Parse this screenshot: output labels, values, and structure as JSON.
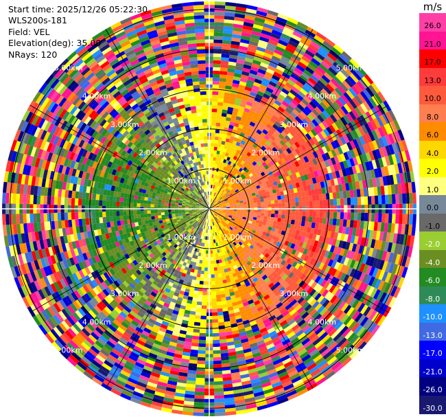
{
  "header": {
    "start_time": "Start time: 2025/12/26 05:22:30",
    "instrument": "WLS200s-181",
    "field": "Field: VEL",
    "elevation": "Elevation(deg): 35.00",
    "nrays": "NRays: 120"
  },
  "colorbar": {
    "unit": "m/s",
    "levels": [
      {
        "label": "26.0",
        "color": "#ff3fa6"
      },
      {
        "label": "21.0",
        "color": "#ff1493"
      },
      {
        "label": "17.0",
        "color": "#ff0000"
      },
      {
        "label": "13.0",
        "color": "#ff3b3b"
      },
      {
        "label": "10.0",
        "color": "#ff5a3c"
      },
      {
        "label": "8.0",
        "color": "#ff7f50"
      },
      {
        "label": "6.0",
        "color": "#ff8c00"
      },
      {
        "label": "4.0",
        "color": "#ffd700"
      },
      {
        "label": "2.0",
        "color": "#ffff00"
      },
      {
        "label": "1.0",
        "color": "#ffff80"
      },
      {
        "label": "0.0",
        "color": "#778899"
      },
      {
        "label": "-1.0",
        "color": "#696969"
      },
      {
        "label": "-2.0",
        "color": "#9acd32"
      },
      {
        "label": "-4.0",
        "color": "#6b8e23"
      },
      {
        "label": "-6.0",
        "color": "#228b22"
      },
      {
        "label": "-8.0",
        "color": "#2e8b57"
      },
      {
        "label": "-10.0",
        "color": "#1e90ff"
      },
      {
        "label": "-13.0",
        "color": "#4169e1"
      },
      {
        "label": "-17.0",
        "color": "#0000ff"
      },
      {
        "label": "-21.0",
        "color": "#0000cd"
      },
      {
        "label": "-26.0",
        "color": "#000080"
      },
      {
        "label": "-30.0",
        "color": "#191970"
      }
    ]
  },
  "chart_data": {
    "type": "heatmap",
    "field": "VEL",
    "nrays": 120,
    "range_ring_labels": [
      "1.00km",
      "2.00km",
      "3.00km",
      "4.00km",
      "5.00km"
    ],
    "rings_km": [
      1,
      2,
      3,
      4,
      5
    ],
    "max_range_km": 5.2
  }
}
